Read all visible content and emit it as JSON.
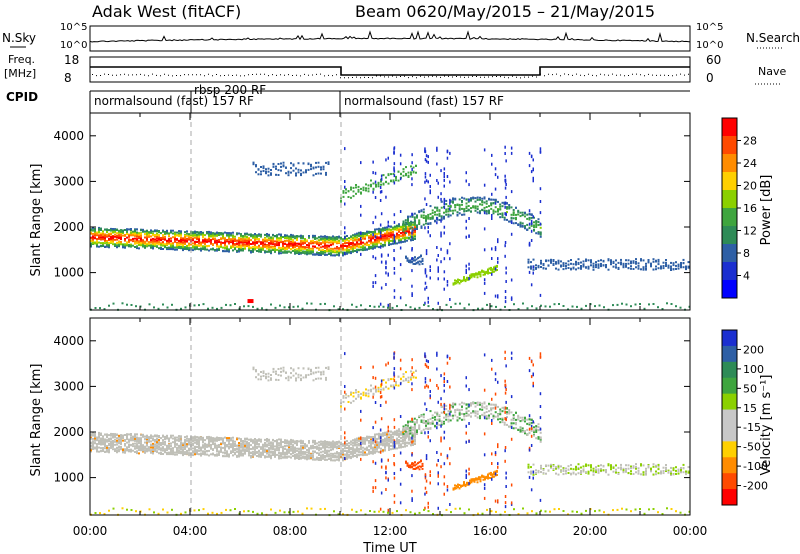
{
  "header": {
    "station": "Adak West (fitACF)",
    "beam": "Beam 06",
    "date_range": "20/May/2015 – 21/May/2015"
  },
  "top_panel": {
    "left_label": "N.Sky",
    "left_ticks": [
      "10^5",
      "10^0"
    ],
    "right_ticks": [
      "10^5",
      "10^0"
    ],
    "right_label": "N.Search"
  },
  "freq_panel": {
    "left_label_1": "Freq.",
    "left_label_2": "[MHz]",
    "left_ticks": [
      "18",
      "8"
    ],
    "right_ticks": [
      "60",
      "0"
    ],
    "right_label": "Nave"
  },
  "cpid": {
    "label": "CPID",
    "segments": [
      {
        "name": "normalsound (fast) 157 RF",
        "start": 0,
        "end": 10
      },
      {
        "name": "rbsp 200 RF",
        "start": 4,
        "end": 10
      },
      {
        "name": "normalsound (fast) 157 RF",
        "start": 10,
        "end": 24
      }
    ]
  },
  "chart_data": [
    {
      "type": "heatmap",
      "title": "Power",
      "ylabel": "Slant Range [km]",
      "xlim": [
        0,
        24
      ],
      "ylim": [
        180,
        4500
      ],
      "yticks": [
        "1000",
        "2000",
        "3000",
        "4000"
      ],
      "colorbar": {
        "label": "Power [dB]",
        "ticks": [
          "28",
          "24",
          "20",
          "16",
          "12",
          "8",
          "4"
        ],
        "colors": [
          "#ff0000",
          "#ff4a00",
          "#ff8c00",
          "#ffd000",
          "#8bd000",
          "#3fa53f",
          "#2e8b57",
          "#2e5fa5",
          "#1b2fd0",
          "#0000ff"
        ]
      },
      "bands": [
        {
          "x": [
            0,
            10
          ],
          "y_center": 1800,
          "width": 400
        },
        {
          "x": [
            10,
            13
          ],
          "y_center": 1750,
          "width": 350
        },
        {
          "x": [
            13,
            18
          ],
          "y_center": 2100,
          "width": 300
        },
        {
          "x": [
            17.5,
            24
          ],
          "y_center": 1150,
          "width": 250
        },
        {
          "x": [
            7,
            9
          ],
          "y_center": 3300,
          "width": 200
        }
      ]
    },
    {
      "type": "heatmap",
      "title": "Velocity",
      "ylabel": "Slant Range [km]",
      "xlabel": "Time UT",
      "xlim": [
        0,
        24
      ],
      "ylim": [
        180,
        4500
      ],
      "xticks": [
        "00:00",
        "04:00",
        "08:00",
        "12:00",
        "16:00",
        "20:00",
        "00:00"
      ],
      "yticks": [
        "1000",
        "2000",
        "3000",
        "4000"
      ],
      "colorbar": {
        "label": "Velocity [m s⁻¹]",
        "ticks": [
          "200",
          "100",
          "50",
          "15",
          "-15",
          "-50",
          "-100",
          "-200"
        ],
        "colors": [
          "#1b2fd0",
          "#2e5fa5",
          "#2e8b57",
          "#3fa53f",
          "#8bd000",
          "#c8c8c8",
          "#c8c8c8",
          "#ffd000",
          "#ff8c00",
          "#ff4a00",
          "#ff0000"
        ]
      }
    }
  ],
  "x_axis": {
    "label": "Time UT",
    "ticks": [
      "00:00",
      "04:00",
      "08:00",
      "12:00",
      "16:00",
      "20:00",
      "00:00"
    ]
  },
  "colors": {
    "gray_scatter": "#c0c0b8",
    "dashed": "#999999"
  }
}
